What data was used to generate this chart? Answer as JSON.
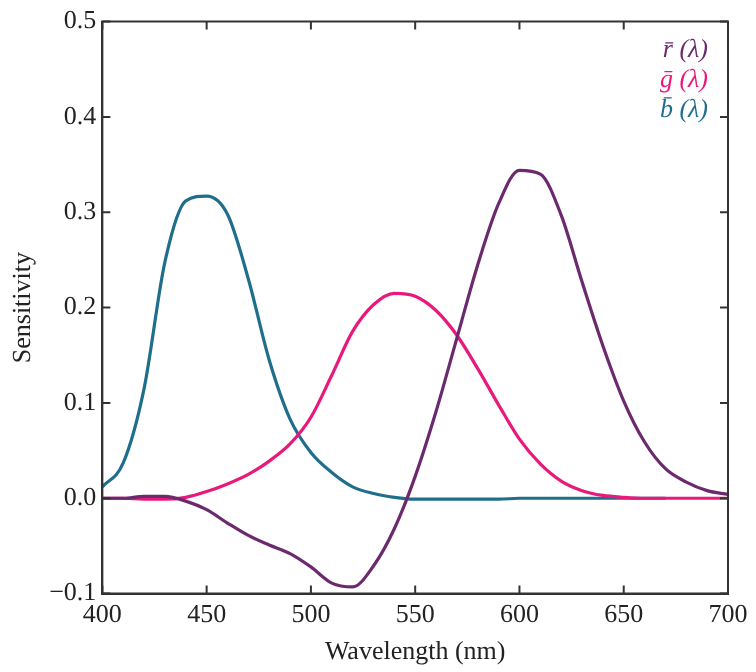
{
  "chart_data": {
    "type": "line",
    "xlabel": "Wavelength (nm)",
    "ylabel": "Sensitivity",
    "x": [
      400,
      410,
      420,
      430,
      440,
      450,
      460,
      470,
      480,
      490,
      500,
      510,
      520,
      530,
      540,
      550,
      560,
      570,
      580,
      590,
      600,
      610,
      620,
      630,
      640,
      650,
      660,
      670,
      680,
      690,
      700
    ],
    "series": [
      {
        "name": "r̄ (λ)",
        "color": "#6b2a6e",
        "values": [
          0,
          0,
          0.002,
          0.002,
          -0.003,
          -0.012,
          -0.026,
          -0.039,
          -0.049,
          -0.058,
          -0.072,
          -0.089,
          -0.093,
          -0.071,
          -0.032,
          0.023,
          0.091,
          0.168,
          0.245,
          0.309,
          0.344,
          0.34,
          0.297,
          0.227,
          0.16,
          0.102,
          0.059,
          0.031,
          0.017,
          0.008,
          0.004
        ]
      },
      {
        "name": "ḡ (λ)",
        "color": "#e8197a",
        "values": [
          0,
          0,
          -0.001,
          -0.001,
          0.001,
          0.007,
          0.015,
          0.025,
          0.039,
          0.057,
          0.085,
          0.129,
          0.175,
          0.203,
          0.215,
          0.212,
          0.197,
          0.171,
          0.136,
          0.098,
          0.062,
          0.036,
          0.018,
          0.008,
          0.003,
          0.001,
          0,
          0,
          0,
          0,
          0
        ]
      },
      {
        "name": "b̄ (λ)",
        "color": "#1f6e8c",
        "values": [
          0.012,
          0.037,
          0.115,
          0.248,
          0.312,
          0.317,
          0.298,
          0.23,
          0.145,
          0.083,
          0.048,
          0.027,
          0.012,
          0.005,
          0.001,
          -0.001,
          -0.001,
          -0.001,
          -0.001,
          -0.001,
          0,
          0,
          0,
          0,
          0,
          0,
          0,
          0,
          null,
          null,
          null
        ]
      }
    ],
    "xlim": [
      400,
      700
    ],
    "xticks": [
      400,
      450,
      500,
      550,
      600,
      650,
      700
    ],
    "ylim": [
      -0.1,
      0.5
    ],
    "yticks": [
      {
        "value": -0.1,
        "label": "−0.1"
      },
      {
        "value": 0,
        "label": "0.0"
      },
      0.1,
      0.2,
      0.3,
      0.4,
      0.5
    ],
    "grid": false,
    "legend": "top right",
    "marker": "none",
    "line_style": "solid"
  }
}
